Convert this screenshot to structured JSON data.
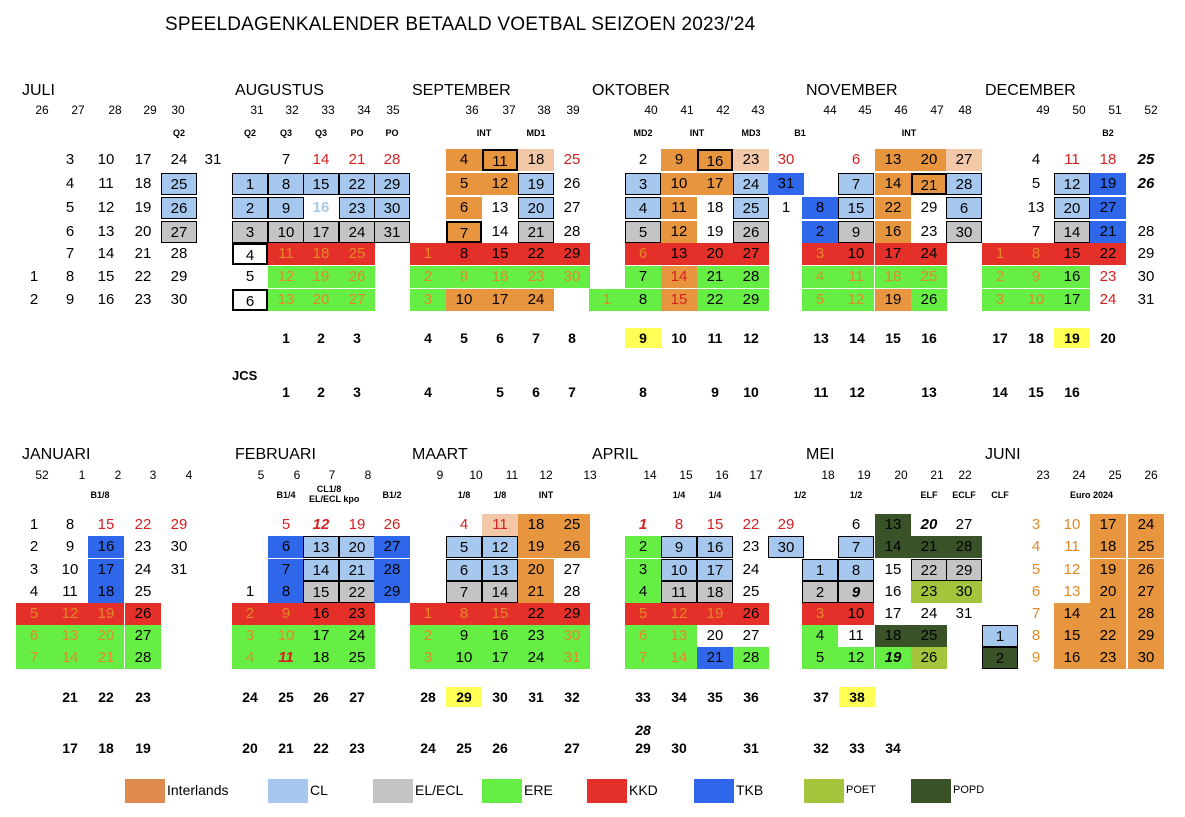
{
  "title": "SPEELDAGENKALENDER BETAALD VOETBAL SEIZOEN 2023/'24",
  "colors": {
    "Interlands": "#e89540",
    "CL": "#a6c8ef",
    "ELECL": "#c4c4c4",
    "ERE": "#66ee44",
    "KKD": "#e43028",
    "TKB": "#2f67ea",
    "POET": "#a4c43c",
    "POPD": "#3a5227",
    "peach": "#f3c8a8",
    "yellow": "#ffff55"
  },
  "jcs_label": "JCS",
  "legend": [
    {
      "key": "Interlands",
      "label": "Interlands",
      "color": "#e08a50"
    },
    {
      "key": "CL",
      "label": "CL",
      "color": "#a6c8ef"
    },
    {
      "key": "ELECL",
      "label": "EL/ECL",
      "color": "#c4c4c4"
    },
    {
      "key": "ERE",
      "label": "ERE",
      "color": "#66ee44"
    },
    {
      "key": "KKD",
      "label": "KKD",
      "color": "#e43028"
    },
    {
      "key": "TKB",
      "label": "TKB",
      "color": "#2f67ea"
    },
    {
      "key": "POET",
      "label": "POET",
      "color": "#a4c43c"
    },
    {
      "key": "POPD",
      "label": "POPD",
      "color": "#3a5227"
    }
  ],
  "halves": [
    {
      "months": [
        {
          "name": "JULI"
        },
        {
          "name": "AUGUSTUS"
        },
        {
          "name": "SEPTEMBER"
        },
        {
          "name": "OKTOBER"
        },
        {
          "name": "NOVEMBER"
        },
        {
          "name": "DECEMBER"
        }
      ],
      "weeks": [
        "26",
        "27",
        "28",
        "29",
        "30",
        "31",
        "32",
        "33",
        "34",
        "35",
        "36",
        "37",
        "38",
        "39",
        "40",
        "41",
        "42",
        "43",
        "44",
        "45",
        "46",
        "47",
        "48",
        "49",
        "50",
        "51",
        "52"
      ],
      "tags": [
        "Q2",
        "Q2",
        "Q3",
        "Q3",
        "PO",
        "PO",
        "INT",
        "MD1",
        "MD2",
        "INT",
        "MD3",
        "B1",
        "INT",
        "B2"
      ],
      "rows": [
        [
          "3",
          "10",
          "17",
          "24",
          "31",
          "7",
          "14",
          "21",
          "28",
          "4",
          "11",
          "18",
          "25",
          "2",
          "9",
          "16",
          "23",
          "30",
          "6",
          "13",
          "20",
          "27",
          "4",
          "11",
          "18",
          "25"
        ],
        [
          "4",
          "11",
          "18",
          "25",
          "1",
          "8",
          "15",
          "22",
          "29",
          "5",
          "12",
          "19",
          "26",
          "3",
          "10",
          "17",
          "24",
          "31",
          "7",
          "14",
          "21",
          "28",
          "5",
          "12",
          "19",
          "26"
        ],
        [
          "5",
          "12",
          "19",
          "26",
          "2",
          "9",
          "16",
          "23",
          "30",
          "6",
          "13",
          "20",
          "27",
          "4",
          "11",
          "18",
          "25",
          "1",
          "8",
          "15",
          "22",
          "29",
          "6",
          "13",
          "20",
          "27"
        ],
        [
          "6",
          "13",
          "20",
          "27",
          "3",
          "10",
          "17",
          "24",
          "31",
          "7",
          "14",
          "21",
          "28",
          "5",
          "12",
          "19",
          "26",
          "2",
          "9",
          "16",
          "23",
          "30",
          "7",
          "14",
          "21",
          "28"
        ],
        [
          "7",
          "14",
          "21",
          "28",
          "4",
          "11",
          "18",
          "25",
          "1",
          "8",
          "15",
          "22",
          "29",
          "6",
          "13",
          "20",
          "27",
          "3",
          "10",
          "17",
          "24",
          "1",
          "8",
          "15",
          "22",
          "29"
        ],
        [
          "1",
          "8",
          "15",
          "22",
          "29",
          "5",
          "12",
          "19",
          "26",
          "2",
          "9",
          "16",
          "23",
          "30",
          "7",
          "14",
          "21",
          "28",
          "4",
          "11",
          "18",
          "25",
          "2",
          "9",
          "16",
          "23",
          "30"
        ],
        [
          "2",
          "9",
          "16",
          "23",
          "30",
          "6",
          "13",
          "20",
          "27",
          "3",
          "10",
          "17",
          "24",
          "1",
          "8",
          "15",
          "22",
          "29",
          "5",
          "12",
          "19",
          "26",
          "3",
          "10",
          "17",
          "24",
          "31"
        ]
      ],
      "speeldag": [
        "1",
        "2",
        "3",
        "4",
        "5",
        "6",
        "7",
        "8",
        "9",
        "10",
        "11",
        "12",
        "13",
        "14",
        "15",
        "16",
        "17",
        "18",
        "19",
        "20"
      ],
      "jcs": [
        "1",
        "2",
        "3",
        "4",
        "5",
        "6",
        "7",
        "8",
        "9",
        "10",
        "11",
        "12",
        "13",
        "14",
        "15",
        "16"
      ]
    },
    {
      "months": [
        {
          "name": "JANUARI"
        },
        {
          "name": "FEBRUARI"
        },
        {
          "name": "MAART"
        },
        {
          "name": "APRIL"
        },
        {
          "name": "MEI"
        },
        {
          "name": "JUNI"
        }
      ],
      "weeks": [
        "52",
        "1",
        "2",
        "3",
        "4",
        "5",
        "6",
        "7",
        "8",
        "9",
        "10",
        "11",
        "12",
        "13",
        "14",
        "15",
        "16",
        "17",
        "18",
        "19",
        "20",
        "21",
        "22",
        "23",
        "24",
        "25",
        "26"
      ],
      "tags": [
        "B1/8",
        "B1/4",
        "CL1/8",
        "EL/ECL kpo",
        "B1/2",
        "1/8",
        "1/8",
        "INT",
        "1/4",
        "1/4",
        "1/2",
        "1/2",
        "ELF",
        "ECLF",
        "CLF",
        "Euro 2024"
      ],
      "rows": [
        [
          "1",
          "8",
          "15",
          "22",
          "29",
          "5",
          "12",
          "19",
          "26",
          "4",
          "11",
          "18",
          "25",
          "1",
          "8",
          "15",
          "22",
          "29",
          "6",
          "13",
          "20",
          "27",
          "3",
          "10",
          "17",
          "24"
        ],
        [
          "2",
          "9",
          "16",
          "23",
          "30",
          "6",
          "13",
          "20",
          "27",
          "5",
          "12",
          "19",
          "26",
          "2",
          "9",
          "16",
          "23",
          "30",
          "7",
          "14",
          "21",
          "28",
          "4",
          "11",
          "18",
          "25"
        ],
        [
          "3",
          "10",
          "17",
          "24",
          "31",
          "7",
          "14",
          "21",
          "28",
          "6",
          "13",
          "20",
          "27",
          "3",
          "10",
          "17",
          "24",
          "1",
          "8",
          "15",
          "22",
          "29",
          "5",
          "12",
          "19",
          "26"
        ],
        [
          "4",
          "11",
          "18",
          "25",
          "1",
          "8",
          "15",
          "22",
          "29",
          "7",
          "14",
          "21",
          "28",
          "4",
          "11",
          "18",
          "25",
          "2",
          "9",
          "16",
          "23",
          "30",
          "6",
          "13",
          "20",
          "27"
        ],
        [
          "5",
          "12",
          "19",
          "26",
          "2",
          "9",
          "16",
          "23",
          "1",
          "8",
          "15",
          "22",
          "29",
          "5",
          "12",
          "19",
          "26",
          "3",
          "10",
          "17",
          "24",
          "31",
          "7",
          "14",
          "21",
          "28"
        ],
        [
          "6",
          "13",
          "20",
          "27",
          "3",
          "10",
          "17",
          "24",
          "2",
          "9",
          "16",
          "23",
          "30",
          "6",
          "13",
          "20",
          "27",
          "4",
          "11",
          "18",
          "25",
          "1",
          "8",
          "15",
          "22",
          "29"
        ],
        [
          "7",
          "14",
          "21",
          "28",
          "4",
          "11",
          "18",
          "25",
          "3",
          "10",
          "17",
          "24",
          "31",
          "7",
          "14",
          "21",
          "28",
          "5",
          "12",
          "19",
          "26",
          "2",
          "9",
          "16",
          "23",
          "30"
        ]
      ],
      "speeldag": [
        "21",
        "22",
        "23",
        "24",
        "25",
        "26",
        "27",
        "28",
        "29",
        "30",
        "31",
        "32",
        "33",
        "34",
        "35",
        "36",
        "37",
        "38"
      ],
      "jcs": [
        "17",
        "18",
        "19",
        "20",
        "21",
        "22",
        "23",
        "24",
        "25",
        "26",
        "27",
        "28",
        "29",
        "30",
        "31",
        "32",
        "33",
        "34"
      ]
    }
  ]
}
